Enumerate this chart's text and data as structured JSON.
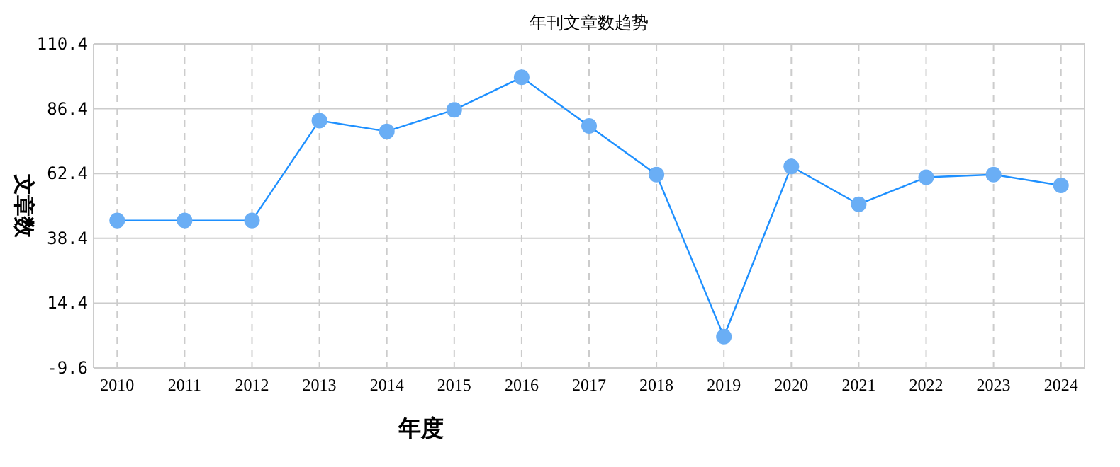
{
  "chart_data": {
    "type": "line",
    "title": "年刊文章数趋势",
    "xlabel": "年度",
    "ylabel": "文章数",
    "categories": [
      "2010",
      "2011",
      "2012",
      "2013",
      "2014",
      "2015",
      "2016",
      "2017",
      "2018",
      "2019",
      "2020",
      "2021",
      "2022",
      "2023",
      "2024"
    ],
    "series": [
      {
        "color": "#1e90ff",
        "values": [
          45,
          45,
          45,
          82,
          78,
          86,
          98,
          80,
          62,
          2,
          65,
          51,
          61,
          62,
          58
        ]
      }
    ],
    "ylim": [
      -9.6,
      110.4
    ],
    "yticks": [
      -9.6,
      14.4,
      38.4,
      62.4,
      86.4,
      110.4
    ],
    "grid": true,
    "marker": "circle"
  }
}
